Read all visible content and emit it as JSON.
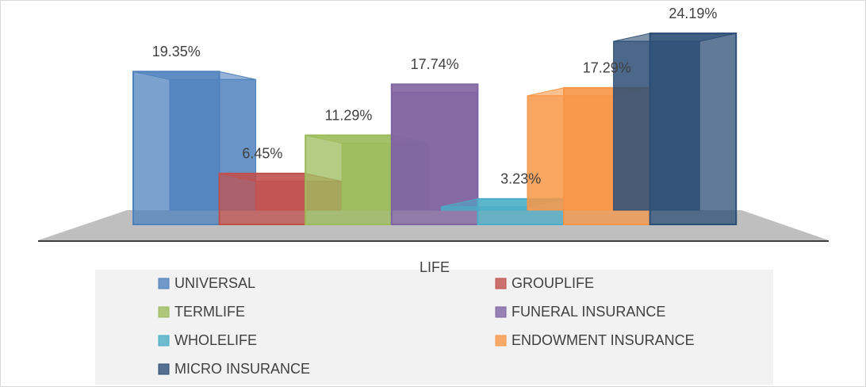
{
  "chart_data": {
    "type": "bar3d",
    "categories": [
      "LIFE"
    ],
    "series": [
      {
        "name": "UNIVERSAL",
        "color": "#4f81bd",
        "values": [
          19.35
        ],
        "value_labels": [
          "19.35%"
        ]
      },
      {
        "name": "GROUPLIFE",
        "color": "#c0504d",
        "values": [
          6.45
        ],
        "value_labels": [
          "6.45%"
        ]
      },
      {
        "name": "TERMLIFE",
        "color": "#9bbb59",
        "values": [
          11.29
        ],
        "value_labels": [
          "11.29%"
        ]
      },
      {
        "name": "FUNERAL INSURANCE",
        "color": "#8064a2",
        "values": [
          17.74
        ],
        "value_labels": [
          "17.74%"
        ]
      },
      {
        "name": "WHOLELIFE",
        "color": "#4bacc6",
        "values": [
          3.23
        ],
        "value_labels": [
          "3.23%"
        ]
      },
      {
        "name": "ENDOWMENT INSURANCE",
        "color": "#f79646",
        "values": [
          17.29
        ],
        "value_labels": [
          "17.29%"
        ]
      },
      {
        "name": "MICRO INSURANCE",
        "color": "#2c4d75",
        "values": [
          24.19
        ],
        "value_labels": [
          "24.19%"
        ]
      }
    ]
  }
}
